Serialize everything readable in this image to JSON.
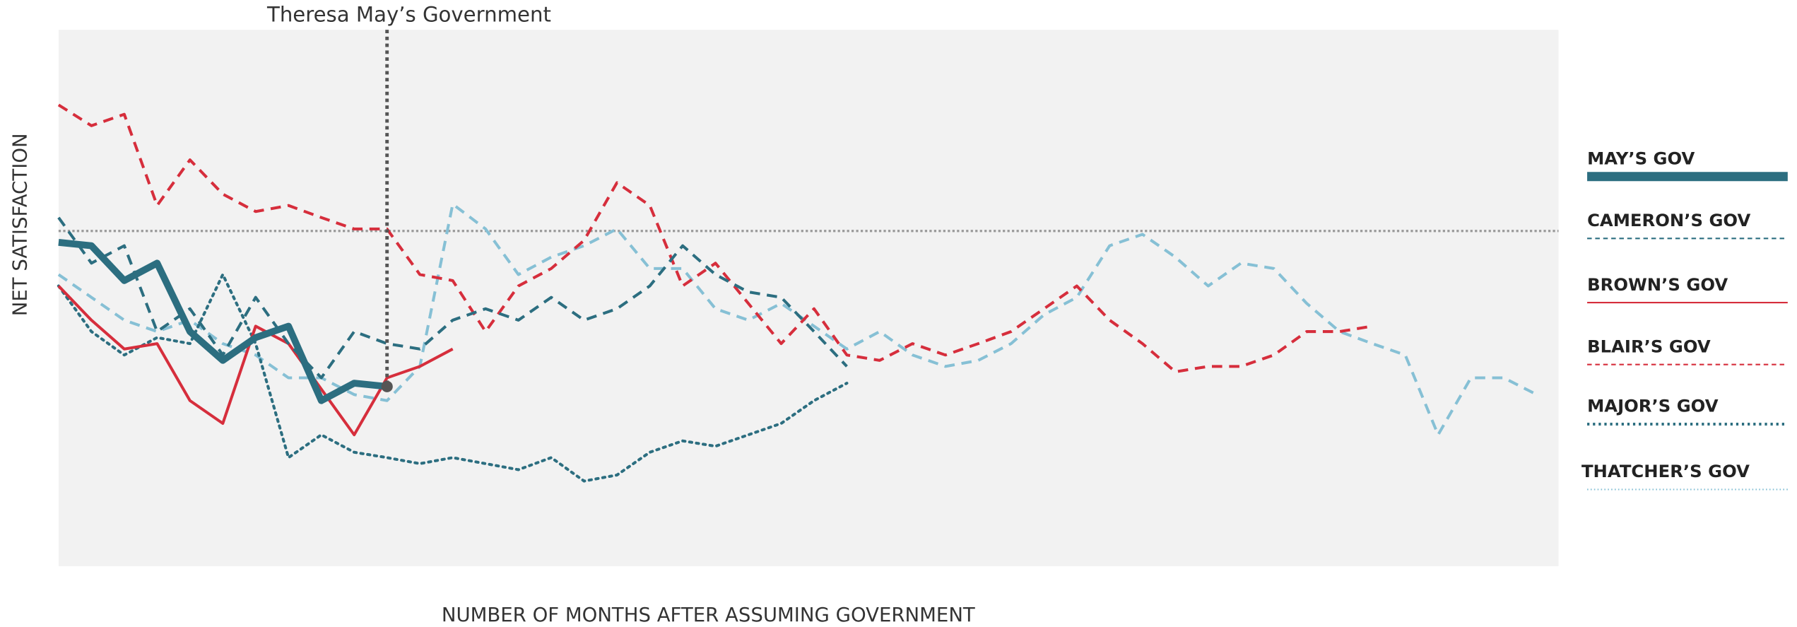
{
  "chart_data": {
    "type": "line",
    "annotation": {
      "text": "Theresa May’s Government",
      "x": 30
    },
    "ylabel": "NET SATISFACTION",
    "xlabel": "NUMBER OF MONTHS AFTER ASSUMING GOVERNMENT",
    "xlim": [
      0,
      137
    ],
    "ylim": [
      -50,
      30
    ],
    "reference_line": 0,
    "x": [
      0,
      3,
      6,
      9,
      12,
      15,
      18,
      21,
      24,
      27,
      30,
      33,
      36,
      39,
      42,
      45,
      48,
      51,
      54,
      57,
      60,
      63,
      66,
      69,
      72,
      75,
      78,
      81,
      84,
      87,
      90,
      93,
      96,
      99,
      102,
      105,
      108,
      111,
      114,
      117,
      120,
      123,
      126,
      129,
      132,
      135
    ],
    "series": [
      {
        "name": "MAY’S GOV",
        "color": "#2c6e80",
        "dash": "solid",
        "width": 6,
        "values": [
          -1.7,
          -2.2,
          -7.4,
          -4.8,
          -15,
          -19.3,
          -15.9,
          -14.2,
          -25.3,
          -22.7,
          -23.2,
          null,
          null,
          null,
          null,
          null,
          null,
          null,
          null,
          null,
          null,
          null,
          null,
          null,
          null,
          null,
          null,
          null,
          null,
          null,
          null,
          null,
          null,
          null,
          null,
          null,
          null,
          null,
          null,
          null,
          null,
          null,
          null,
          null,
          null,
          null
        ]
      },
      {
        "name": "CAMERON’S GOV",
        "color": "#2c6e80",
        "dash": "dashed",
        "width": 2.5,
        "values": [
          2,
          -4.8,
          -2.2,
          -15,
          -11.6,
          -18.5,
          -9.9,
          -16.8,
          -21.9,
          -15,
          -16.8,
          -17.6,
          -13.3,
          -11.6,
          -13.3,
          -9.9,
          -13.3,
          -11.6,
          -8.2,
          -2.2,
          -6.5,
          -9.1,
          -9.9,
          -15,
          -20.2,
          null,
          null,
          null,
          null,
          null,
          null,
          null,
          null,
          null,
          null,
          null,
          null,
          null,
          null,
          null,
          null,
          null,
          null,
          null,
          null,
          null
        ]
      },
      {
        "name": "BROWN’S GOV",
        "color": "#d62e3c",
        "dash": "solid",
        "width": 2.5,
        "values": [
          -8.2,
          -13.3,
          -17.6,
          -16.8,
          -25.3,
          -28.7,
          -14.2,
          -16.8,
          -23.6,
          -30.4,
          -21.9,
          -20.2,
          -17.6,
          null,
          null,
          null,
          null,
          null,
          null,
          null,
          null,
          null,
          null,
          null,
          null,
          null,
          null,
          null,
          null,
          null,
          null,
          null,
          null,
          null,
          null,
          null,
          null,
          null,
          null,
          null,
          null,
          null,
          null,
          null,
          null,
          null
        ]
      },
      {
        "name": "BLAIR’S GOV",
        "color": "#d62e3c",
        "dash": "dashed",
        "width": 2.5,
        "values": [
          18.8,
          15.7,
          17.4,
          3.8,
          10.6,
          5.5,
          2.9,
          3.8,
          2,
          0.3,
          0.3,
          -6.5,
          -7.4,
          -15,
          -8.2,
          -5.6,
          -1.4,
          7.2,
          3.8,
          -8.2,
          -4.8,
          -10.8,
          -16.8,
          -11.6,
          -18.5,
          -19.3,
          -16.8,
          -18.5,
          -16.8,
          -15,
          -11.6,
          -8.2,
          -13.3,
          -16.8,
          -21,
          -20.2,
          -20.2,
          -18.5,
          -15,
          -15,
          -14.2,
          null,
          null,
          null,
          null,
          null
        ]
      },
      {
        "name": "MAJOR’S GOV",
        "color": "#2c6e80",
        "dash": "dotted",
        "width": 2.5,
        "values": [
          -8.2,
          -15,
          -18.5,
          -15.9,
          -16.8,
          -6.5,
          -16.8,
          -33.8,
          -30.4,
          -33,
          -33.8,
          -34.7,
          -33.8,
          -34.7,
          -35.6,
          -33.8,
          -37.3,
          -36.4,
          -33,
          -31.3,
          -32.1,
          -30.4,
          -28.7,
          -25.3,
          -22.7,
          null,
          null,
          null,
          null,
          null,
          null,
          null,
          null,
          null,
          null,
          null,
          null,
          null,
          null,
          null,
          null,
          null,
          null,
          null,
          null,
          null
        ]
      },
      {
        "name": "THATCHER’S GOV",
        "color": "#86c0d5",
        "dash": "dashed",
        "width": 2.5,
        "values": [
          -6.5,
          -9.9,
          -13.3,
          -15,
          -13.3,
          -16.8,
          -18.5,
          -21.9,
          -21.9,
          -24.4,
          -25.3,
          -20.2,
          4,
          0.3,
          -6.5,
          -3.9,
          -2.2,
          0.3,
          -5.6,
          -5.6,
          -11.6,
          -13.3,
          -10.8,
          -14.2,
          -17.6,
          -15,
          -18.5,
          -20.2,
          -19.3,
          -16.8,
          -12.5,
          -9.9,
          -2.2,
          -0.5,
          -3.9,
          -8.2,
          -4.8,
          -5.6,
          -10.8,
          -15,
          -16.8,
          -18.5,
          -30.4,
          -21.9,
          -21.9,
          -24.4
        ]
      }
    ]
  }
}
